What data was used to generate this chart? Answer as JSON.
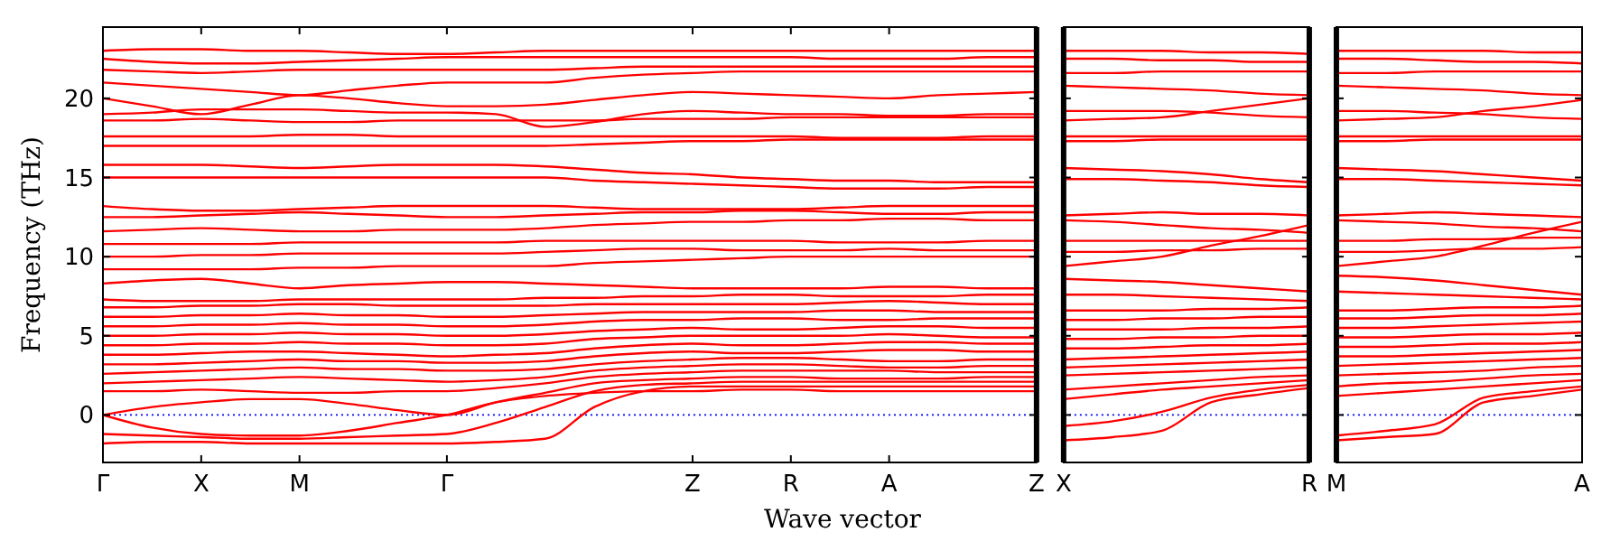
{
  "chart_data": [
    {
      "type": "line",
      "xlabel": "Wave vector",
      "ylabel": "Frequency (THz)",
      "categories": [
        "Γ",
        null,
        "X",
        null,
        "M",
        null,
        null,
        "Γ",
        null,
        null,
        null,
        null,
        "Z",
        null,
        "R",
        null,
        "A",
        null,
        null,
        "Z"
      ],
      "ylim": [
        -3,
        24.5
      ],
      "yticks": [
        0,
        5,
        10,
        15,
        20
      ],
      "grid": false,
      "marker": "none",
      "line_style": "solid",
      "ref_lines": [
        {
          "axis": "y",
          "value": 0,
          "color": "#0000ff",
          "line_style": "dotted"
        }
      ],
      "series": [
        {
          "color": "#ff0000",
          "values": [
            0,
            -0.8,
            -1.2,
            -1.3,
            -1.3,
            -1.0,
            -0.5,
            0,
            0.8,
            1.2,
            1.4,
            1.5,
            1.5,
            1.6,
            1.6,
            1.5,
            1.5,
            1.5,
            1.5,
            1.5
          ]
        },
        {
          "color": "#ff0000",
          "values": [
            -1.8,
            -1.7,
            -1.7,
            -1.8,
            -1.8,
            -1.8,
            -1.8,
            -1.8,
            -1.7,
            -1.5,
            0.5,
            1.5,
            1.8,
            1.8,
            1.8,
            1.8,
            1.8,
            1.8,
            1.8,
            1.8
          ]
        },
        {
          "color": "#ff0000",
          "values": [
            -1.2,
            -1.3,
            -1.4,
            -1.5,
            -1.5,
            -1.4,
            -1.3,
            -1.2,
            -0.5,
            0.5,
            1.5,
            1.9,
            2.0,
            2.1,
            2.1,
            2.1,
            2.1,
            2.1,
            2.1,
            2.1
          ]
        },
        {
          "color": "#ff0000",
          "values": [
            0,
            0.5,
            0.8,
            1.0,
            1.0,
            0.7,
            0.3,
            0,
            0.8,
            1.4,
            2.0,
            2.2,
            2.3,
            2.4,
            2.4,
            2.3,
            2.3,
            2.3,
            2.4,
            2.4
          ]
        },
        {
          "color": "#ff0000",
          "values": [
            1.5,
            1.5,
            1.6,
            1.5,
            1.4,
            1.4,
            1.5,
            1.5,
            1.7,
            2.0,
            2.4,
            2.6,
            2.7,
            2.8,
            2.8,
            2.8,
            2.8,
            2.7,
            2.7,
            2.7
          ]
        },
        {
          "color": "#ff0000",
          "values": [
            2.0,
            2.1,
            2.2,
            2.3,
            2.4,
            2.3,
            2.2,
            2.1,
            2.2,
            2.4,
            2.8,
            3.0,
            3.1,
            3.2,
            3.2,
            3.1,
            3.0,
            3.0,
            3.1,
            3.1
          ]
        },
        {
          "color": "#ff0000",
          "values": [
            2.6,
            2.7,
            2.8,
            2.9,
            3.0,
            2.9,
            2.9,
            2.8,
            2.8,
            2.9,
            3.2,
            3.4,
            3.5,
            3.6,
            3.6,
            3.5,
            3.4,
            3.4,
            3.5,
            3.5
          ]
        },
        {
          "color": "#ff0000",
          "values": [
            3.2,
            3.2,
            3.3,
            3.4,
            3.5,
            3.4,
            3.4,
            3.3,
            3.3,
            3.4,
            3.7,
            3.9,
            4.0,
            3.9,
            3.9,
            4.0,
            4.1,
            4.1,
            4.0,
            4.0
          ]
        },
        {
          "color": "#ff0000",
          "values": [
            3.8,
            3.8,
            3.9,
            4.0,
            4.0,
            3.9,
            3.8,
            3.7,
            3.8,
            3.9,
            4.2,
            4.4,
            4.5,
            4.4,
            4.4,
            4.5,
            4.6,
            4.6,
            4.5,
            4.5
          ]
        },
        {
          "color": "#ff0000",
          "values": [
            4.4,
            4.4,
            4.5,
            4.5,
            4.6,
            4.5,
            4.5,
            4.4,
            4.4,
            4.5,
            4.8,
            4.9,
            5.0,
            5.0,
            5.0,
            5.0,
            5.1,
            5.0,
            4.9,
            4.9
          ]
        },
        {
          "color": "#ff0000",
          "values": [
            5.0,
            5.0,
            5.1,
            5.1,
            5.2,
            5.1,
            5.1,
            5.0,
            5.0,
            5.1,
            5.3,
            5.4,
            5.5,
            5.4,
            5.4,
            5.5,
            5.6,
            5.6,
            5.5,
            5.5
          ]
        },
        {
          "color": "#ff0000",
          "values": [
            5.6,
            5.6,
            5.7,
            5.7,
            5.8,
            5.7,
            5.7,
            5.6,
            5.6,
            5.7,
            5.9,
            6.0,
            6.0,
            6.1,
            6.1,
            6.0,
            6.0,
            6.1,
            6.1,
            6.1
          ]
        },
        {
          "color": "#ff0000",
          "values": [
            6.2,
            6.2,
            6.3,
            6.3,
            6.4,
            6.3,
            6.3,
            6.2,
            6.2,
            6.3,
            6.4,
            6.5,
            6.5,
            6.5,
            6.5,
            6.6,
            6.6,
            6.5,
            6.5,
            6.5
          ]
        },
        {
          "color": "#ff0000",
          "values": [
            6.8,
            6.8,
            6.9,
            6.9,
            7.0,
            7.0,
            6.9,
            6.9,
            6.9,
            6.9,
            7.0,
            7.0,
            7.0,
            7.0,
            7.0,
            7.1,
            7.2,
            7.1,
            7.0,
            7.0
          ]
        },
        {
          "color": "#ff0000",
          "values": [
            7.3,
            7.2,
            7.2,
            7.2,
            7.3,
            7.3,
            7.3,
            7.3,
            7.3,
            7.4,
            7.4,
            7.5,
            7.5,
            7.6,
            7.6,
            7.5,
            7.5,
            7.5,
            7.6,
            7.6
          ]
        },
        {
          "color": "#ff0000",
          "values": [
            8.3,
            8.5,
            8.6,
            8.3,
            8.0,
            8.2,
            8.3,
            8.4,
            8.4,
            8.3,
            8.2,
            8.1,
            8.0,
            8.0,
            8.0,
            8.0,
            8.1,
            8.1,
            8.0,
            8.0
          ]
        },
        {
          "color": "#ff0000",
          "values": [
            9.2,
            9.2,
            9.2,
            9.2,
            9.3,
            9.3,
            9.4,
            9.4,
            9.4,
            9.4,
            9.6,
            9.7,
            9.8,
            9.9,
            10.0,
            10.0,
            10.0,
            10.0,
            10.0,
            10.0
          ]
        },
        {
          "color": "#ff0000",
          "values": [
            10.0,
            10.0,
            10.1,
            10.1,
            10.2,
            10.2,
            10.2,
            10.2,
            10.2,
            10.3,
            10.4,
            10.5,
            10.5,
            10.4,
            10.4,
            10.4,
            10.5,
            10.4,
            10.4,
            10.4
          ]
        },
        {
          "color": "#ff0000",
          "values": [
            10.8,
            10.8,
            10.8,
            10.8,
            10.9,
            10.9,
            10.9,
            10.9,
            10.9,
            11.0,
            11.0,
            11.0,
            11.0,
            11.0,
            11.0,
            10.9,
            10.9,
            10.9,
            11.0,
            11.0
          ]
        },
        {
          "color": "#ff0000",
          "values": [
            11.6,
            11.7,
            11.8,
            11.7,
            11.6,
            11.6,
            11.7,
            11.7,
            11.7,
            11.8,
            12.0,
            12.1,
            12.2,
            12.2,
            12.3,
            12.3,
            12.4,
            12.4,
            12.3,
            12.3
          ]
        },
        {
          "color": "#ff0000",
          "values": [
            12.5,
            12.5,
            12.6,
            12.7,
            12.8,
            12.7,
            12.6,
            12.5,
            12.5,
            12.6,
            12.7,
            12.8,
            12.8,
            12.9,
            12.9,
            12.8,
            12.7,
            12.7,
            12.8,
            12.8
          ]
        },
        {
          "color": "#ff0000",
          "values": [
            13.2,
            13.0,
            12.9,
            12.9,
            13.0,
            13.1,
            13.2,
            13.2,
            13.2,
            13.2,
            13.1,
            13.0,
            13.0,
            13.0,
            13.0,
            13.1,
            13.2,
            13.2,
            13.2,
            13.2
          ]
        },
        {
          "color": "#ff0000",
          "values": [
            15.0,
            15.0,
            15.0,
            15.0,
            15.0,
            15.0,
            15.0,
            15.0,
            15.0,
            15.0,
            14.8,
            14.7,
            14.6,
            14.5,
            14.4,
            14.3,
            14.3,
            14.3,
            14.4,
            14.4
          ]
        },
        {
          "color": "#ff0000",
          "values": [
            15.8,
            15.8,
            15.8,
            15.7,
            15.6,
            15.7,
            15.8,
            15.8,
            15.8,
            15.7,
            15.5,
            15.3,
            15.2,
            15.0,
            14.9,
            14.8,
            14.8,
            14.7,
            14.7,
            14.7
          ]
        },
        {
          "color": "#ff0000",
          "values": [
            17.0,
            17.0,
            17.0,
            17.0,
            17.0,
            17.0,
            17.0,
            17.0,
            17.0,
            17.0,
            17.1,
            17.2,
            17.3,
            17.3,
            17.4,
            17.4,
            17.4,
            17.4,
            17.4,
            17.4
          ]
        },
        {
          "color": "#ff0000",
          "values": [
            17.6,
            17.6,
            17.6,
            17.6,
            17.7,
            17.7,
            17.6,
            17.6,
            17.6,
            17.6,
            17.6,
            17.6,
            17.6,
            17.6,
            17.6,
            17.5,
            17.5,
            17.5,
            17.6,
            17.6
          ]
        },
        {
          "color": "#ff0000",
          "values": [
            18.6,
            18.6,
            18.7,
            18.6,
            18.5,
            18.5,
            18.6,
            18.6,
            18.6,
            18.6,
            18.6,
            18.7,
            18.7,
            18.7,
            18.8,
            18.8,
            18.8,
            18.8,
            18.8,
            18.8
          ]
        },
        {
          "color": "#ff0000",
          "values": [
            19.0,
            19.1,
            19.3,
            19.3,
            19.3,
            19.2,
            19.1,
            19.1,
            19.0,
            18.2,
            18.5,
            19.0,
            19.2,
            19.1,
            19.0,
            19.0,
            18.9,
            18.9,
            19.0,
            19.0
          ]
        },
        {
          "color": "#ff0000",
          "values": [
            20.0,
            19.5,
            19.0,
            19.6,
            20.2,
            20.0,
            19.7,
            19.5,
            19.5,
            19.6,
            19.9,
            20.2,
            20.4,
            20.3,
            20.2,
            20.1,
            20.0,
            20.2,
            20.3,
            20.4
          ]
        },
        {
          "color": "#ff0000",
          "values": [
            21.0,
            20.8,
            20.6,
            20.4,
            20.2,
            20.5,
            20.8,
            21.0,
            21.0,
            21.0,
            21.3,
            21.5,
            21.6,
            21.7,
            21.7,
            21.7,
            21.7,
            21.7,
            21.7,
            21.7
          ]
        },
        {
          "color": "#ff0000",
          "values": [
            21.8,
            21.7,
            21.6,
            21.7,
            21.8,
            21.8,
            21.8,
            21.8,
            21.8,
            21.8,
            21.9,
            22.0,
            22.0,
            22.0,
            22.0,
            22.0,
            22.0,
            22.0,
            22.0,
            22.0
          ]
        },
        {
          "color": "#ff0000",
          "values": [
            22.5,
            22.3,
            22.2,
            22.2,
            22.3,
            22.4,
            22.5,
            22.6,
            22.6,
            22.6,
            22.6,
            22.6,
            22.6,
            22.6,
            22.6,
            22.5,
            22.5,
            22.5,
            22.6,
            22.6
          ]
        },
        {
          "color": "#ff0000",
          "values": [
            23.0,
            23.1,
            23.1,
            23.0,
            23.0,
            22.9,
            22.8,
            22.8,
            22.9,
            23.0,
            23.0,
            23.0,
            23.0,
            23.0,
            23.0,
            23.0,
            23.0,
            23.0,
            23.0,
            23.0
          ]
        }
      ]
    },
    {
      "type": "line",
      "categories": [
        "X",
        null,
        null,
        null,
        null,
        "R"
      ],
      "ylim": [
        -3,
        24.5
      ],
      "yticks": [
        0,
        5,
        10,
        15,
        20
      ],
      "tick_labels": "x",
      "grid": false,
      "marker": "none",
      "line_style": "solid",
      "ref_lines": [
        {
          "axis": "y",
          "value": 0,
          "color": "#0000ff",
          "line_style": "dotted"
        }
      ],
      "series": [
        {
          "color": "#ff0000",
          "values": [
            -1.6,
            -1.4,
            -1.0,
            0.8,
            1.3,
            1.7
          ]
        },
        {
          "color": "#ff0000",
          "values": [
            -0.7,
            -0.4,
            0.2,
            1.1,
            1.6,
            1.9
          ]
        },
        {
          "color": "#ff0000",
          "values": [
            1.0,
            1.3,
            1.6,
            1.8,
            2.0,
            2.2
          ]
        },
        {
          "color": "#ff0000",
          "values": [
            1.6,
            1.8,
            2.0,
            2.2,
            2.4,
            2.5
          ]
        },
        {
          "color": "#ff0000",
          "values": [
            2.5,
            2.6,
            2.7,
            2.8,
            2.9,
            3.0
          ]
        },
        {
          "color": "#ff0000",
          "values": [
            3.0,
            3.1,
            3.2,
            3.3,
            3.4,
            3.5
          ]
        },
        {
          "color": "#ff0000",
          "values": [
            3.5,
            3.6,
            3.7,
            3.8,
            3.9,
            4.0
          ]
        },
        {
          "color": "#ff0000",
          "values": [
            4.2,
            4.2,
            4.3,
            4.4,
            4.4,
            4.5
          ]
        },
        {
          "color": "#ff0000",
          "values": [
            4.8,
            4.8,
            4.9,
            4.9,
            5.0,
            5.0
          ]
        },
        {
          "color": "#ff0000",
          "values": [
            5.4,
            5.4,
            5.4,
            5.5,
            5.5,
            5.6
          ]
        },
        {
          "color": "#ff0000",
          "values": [
            6.0,
            6.0,
            6.1,
            6.1,
            6.2,
            6.2
          ]
        },
        {
          "color": "#ff0000",
          "values": [
            6.6,
            6.6,
            6.6,
            6.7,
            6.7,
            6.8
          ]
        },
        {
          "color": "#ff0000",
          "values": [
            7.6,
            7.6,
            7.5,
            7.4,
            7.3,
            7.2
          ]
        },
        {
          "color": "#ff0000",
          "values": [
            8.6,
            8.5,
            8.4,
            8.2,
            8.0,
            7.8
          ]
        },
        {
          "color": "#ff0000",
          "values": [
            9.4,
            9.7,
            10.0,
            10.7,
            11.3,
            12.0
          ]
        },
        {
          "color": "#ff0000",
          "values": [
            10.3,
            10.3,
            10.4,
            10.4,
            10.5,
            10.5
          ]
        },
        {
          "color": "#ff0000",
          "values": [
            11.0,
            11.0,
            11.0,
            11.0,
            11.0,
            11.0
          ]
        },
        {
          "color": "#ff0000",
          "values": [
            12.3,
            12.2,
            12.0,
            11.8,
            11.7,
            11.5
          ]
        },
        {
          "color": "#ff0000",
          "values": [
            12.6,
            12.7,
            12.8,
            12.7,
            12.7,
            12.6
          ]
        },
        {
          "color": "#ff0000",
          "values": [
            14.9,
            14.9,
            14.8,
            14.7,
            14.5,
            14.4
          ]
        },
        {
          "color": "#ff0000",
          "values": [
            15.6,
            15.5,
            15.4,
            15.2,
            14.9,
            14.7
          ]
        },
        {
          "color": "#ff0000",
          "values": [
            17.3,
            17.3,
            17.4,
            17.4,
            17.4,
            17.4
          ]
        },
        {
          "color": "#ff0000",
          "values": [
            17.6,
            17.6,
            17.6,
            17.6,
            17.6,
            17.6
          ]
        },
        {
          "color": "#ff0000",
          "values": [
            18.6,
            18.7,
            18.8,
            19.2,
            19.6,
            20.0
          ]
        },
        {
          "color": "#ff0000",
          "values": [
            19.2,
            19.2,
            19.2,
            19.1,
            18.9,
            18.8
          ]
        },
        {
          "color": "#ff0000",
          "values": [
            20.8,
            20.7,
            20.6,
            20.5,
            20.3,
            20.2
          ]
        },
        {
          "color": "#ff0000",
          "values": [
            21.6,
            21.6,
            21.7,
            21.7,
            21.7,
            21.7
          ]
        },
        {
          "color": "#ff0000",
          "values": [
            22.5,
            22.5,
            22.4,
            22.4,
            22.3,
            22.3
          ]
        },
        {
          "color": "#ff0000",
          "values": [
            23.0,
            23.0,
            23.0,
            22.9,
            22.9,
            22.8
          ]
        }
      ]
    },
    {
      "type": "line",
      "categories": [
        "M",
        null,
        null,
        null,
        null,
        "A"
      ],
      "ylim": [
        -3,
        24.5
      ],
      "yticks": [
        0,
        5,
        10,
        15,
        20
      ],
      "tick_labels": "x",
      "grid": false,
      "marker": "none",
      "line_style": "solid",
      "ref_lines": [
        {
          "axis": "y",
          "value": 0,
          "color": "#0000ff",
          "line_style": "dotted"
        }
      ],
      "series": [
        {
          "color": "#ff0000",
          "values": [
            -1.6,
            -1.4,
            -1.2,
            0.8,
            1.2,
            1.6
          ]
        },
        {
          "color": "#ff0000",
          "values": [
            -1.3,
            -1.0,
            -0.6,
            1.1,
            1.5,
            1.8
          ]
        },
        {
          "color": "#ff0000",
          "values": [
            1.2,
            1.4,
            1.6,
            1.8,
            2.0,
            2.2
          ]
        },
        {
          "color": "#ff0000",
          "values": [
            1.8,
            2.0,
            2.1,
            2.3,
            2.5,
            2.6
          ]
        },
        {
          "color": "#ff0000",
          "values": [
            2.5,
            2.6,
            2.7,
            2.8,
            3.0,
            3.1
          ]
        },
        {
          "color": "#ff0000",
          "values": [
            3.1,
            3.2,
            3.3,
            3.4,
            3.5,
            3.6
          ]
        },
        {
          "color": "#ff0000",
          "values": [
            3.7,
            3.7,
            3.8,
            3.9,
            4.0,
            4.1
          ]
        },
        {
          "color": "#ff0000",
          "values": [
            4.3,
            4.3,
            4.4,
            4.5,
            4.5,
            4.6
          ]
        },
        {
          "color": "#ff0000",
          "values": [
            4.9,
            4.9,
            5.0,
            5.1,
            5.1,
            5.2
          ]
        },
        {
          "color": "#ff0000",
          "values": [
            5.5,
            5.5,
            5.6,
            5.7,
            5.8,
            5.9
          ]
        },
        {
          "color": "#ff0000",
          "values": [
            6.1,
            6.1,
            6.2,
            6.3,
            6.3,
            6.4
          ]
        },
        {
          "color": "#ff0000",
          "values": [
            6.6,
            6.6,
            6.7,
            6.8,
            6.8,
            6.9
          ]
        },
        {
          "color": "#ff0000",
          "values": [
            7.8,
            7.7,
            7.6,
            7.5,
            7.4,
            7.3
          ]
        },
        {
          "color": "#ff0000",
          "values": [
            8.8,
            8.7,
            8.5,
            8.2,
            7.9,
            7.6
          ]
        },
        {
          "color": "#ff0000",
          "values": [
            9.4,
            9.7,
            10.0,
            10.7,
            11.5,
            12.2
          ]
        },
        {
          "color": "#ff0000",
          "values": [
            10.3,
            10.3,
            10.4,
            10.5,
            10.5,
            10.6
          ]
        },
        {
          "color": "#ff0000",
          "values": [
            11.0,
            11.0,
            11.1,
            11.1,
            11.2,
            11.2
          ]
        },
        {
          "color": "#ff0000",
          "values": [
            12.3,
            12.2,
            12.1,
            11.9,
            11.8,
            11.6
          ]
        },
        {
          "color": "#ff0000",
          "values": [
            12.6,
            12.7,
            12.8,
            12.7,
            12.6,
            12.5
          ]
        },
        {
          "color": "#ff0000",
          "values": [
            14.9,
            14.9,
            14.8,
            14.7,
            14.6,
            14.5
          ]
        },
        {
          "color": "#ff0000",
          "values": [
            15.6,
            15.5,
            15.4,
            15.2,
            15.0,
            14.8
          ]
        },
        {
          "color": "#ff0000",
          "values": [
            17.3,
            17.3,
            17.4,
            17.4,
            17.4,
            17.4
          ]
        },
        {
          "color": "#ff0000",
          "values": [
            17.6,
            17.6,
            17.6,
            17.6,
            17.6,
            17.6
          ]
        },
        {
          "color": "#ff0000",
          "values": [
            18.6,
            18.7,
            18.8,
            19.2,
            19.5,
            19.9
          ]
        },
        {
          "color": "#ff0000",
          "values": [
            19.2,
            19.2,
            19.1,
            19.0,
            18.8,
            18.7
          ]
        },
        {
          "color": "#ff0000",
          "values": [
            20.8,
            20.7,
            20.6,
            20.5,
            20.3,
            20.2
          ]
        },
        {
          "color": "#ff0000",
          "values": [
            21.6,
            21.6,
            21.7,
            21.7,
            21.7,
            21.7
          ]
        },
        {
          "color": "#ff0000",
          "values": [
            22.5,
            22.5,
            22.4,
            22.3,
            22.3,
            22.2
          ]
        },
        {
          "color": "#ff0000",
          "values": [
            23.0,
            23.0,
            23.0,
            23.0,
            22.9,
            22.9
          ]
        }
      ]
    }
  ]
}
